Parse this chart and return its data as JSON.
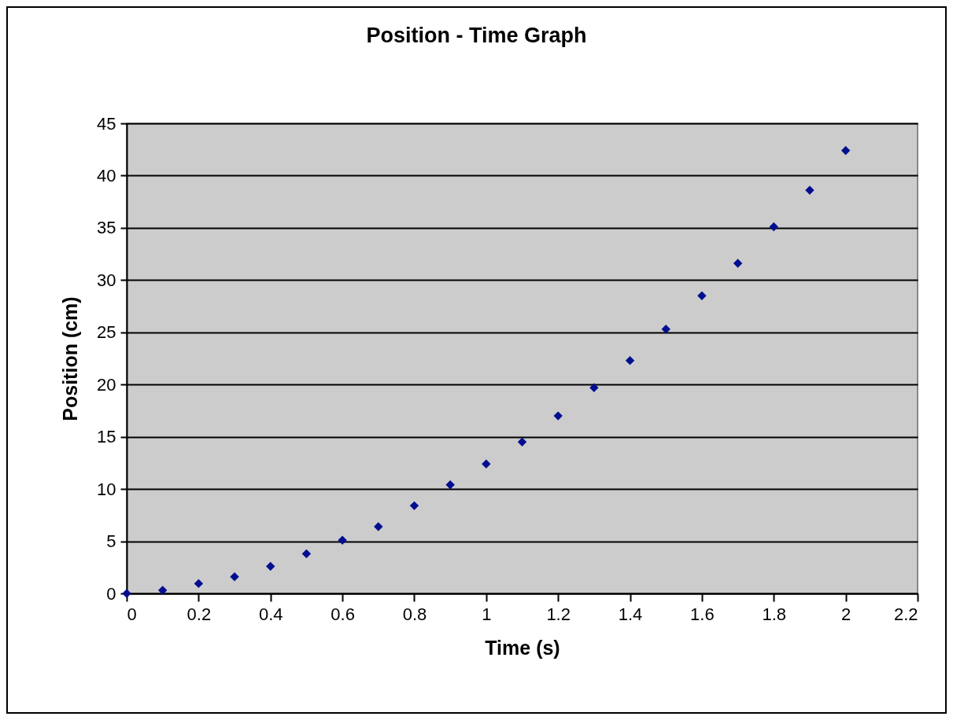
{
  "chart_data": {
    "type": "scatter",
    "title": "Position - Time Graph",
    "xlabel": "Time (s)",
    "ylabel": "Position (cm)",
    "x": [
      0,
      0.1,
      0.2,
      0.3,
      0.4,
      0.5,
      0.6,
      0.7,
      0.8,
      0.9,
      1.0,
      1.1,
      1.2,
      1.3,
      1.4,
      1.5,
      1.6,
      1.7,
      1.8,
      1.9,
      2.0
    ],
    "series": [
      {
        "color": "#000e8f",
        "values": [
          0,
          0.3,
          0.95,
          1.6,
          2.6,
          3.8,
          5.1,
          6.4,
          8.4,
          10.4,
          12.4,
          14.5,
          17.0,
          19.7,
          22.3,
          25.3,
          28.5,
          31.6,
          35.1,
          38.6,
          42.4
        ]
      }
    ],
    "xlim": [
      0,
      2.2
    ],
    "ylim": [
      0,
      45
    ],
    "xticks": [
      0,
      0.2,
      0.4,
      0.6,
      0.8,
      1,
      1.2,
      1.4,
      1.6,
      1.8,
      2,
      2.2
    ],
    "yticks": [
      0,
      5,
      10,
      15,
      20,
      25,
      30,
      35,
      40,
      45
    ],
    "grid": "y",
    "marker": "diamond"
  }
}
